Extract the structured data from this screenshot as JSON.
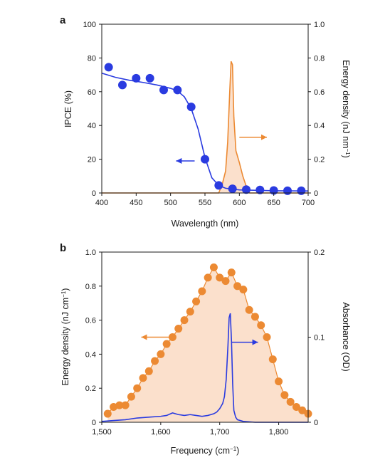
{
  "colors": {
    "blue": "#2a3be0",
    "orange": "#ec8a33",
    "fill": "#fbe0cc",
    "axis": "#1a1a1a"
  },
  "chart_data": [
    {
      "panel": "a",
      "type": "line",
      "xlabel": "Wavelength (nm)",
      "ylabel": "IPCE (%)",
      "y2label_main": "Energy density (nJ nm",
      "y2label_sup": "−1",
      "y2label_end": ")",
      "xlim": [
        400,
        700
      ],
      "ylim": [
        0,
        100
      ],
      "y2lim": [
        0,
        1.0
      ],
      "xticks": [
        400,
        450,
        500,
        550,
        600,
        650,
        700
      ],
      "xtick_labels": [
        "400",
        "450",
        "500",
        "550",
        "600",
        "650",
        "700"
      ],
      "yticks": [
        0,
        20,
        40,
        60,
        80,
        100
      ],
      "ytick_labels": [
        "0",
        "20",
        "40",
        "60",
        "80",
        "100"
      ],
      "y2ticks": [
        0,
        0.2,
        0.4,
        0.6,
        0.8,
        1.0
      ],
      "y2tick_labels": [
        "0",
        "0.2",
        "0.4",
        "0.6",
        "0.8",
        "1.0"
      ],
      "series": [
        {
          "type": "scatter",
          "axis": "left",
          "color": "#2a3be0",
          "x": [
            410,
            430,
            450,
            470,
            490,
            510,
            530,
            550,
            570,
            590,
            610,
            630,
            650,
            670,
            690
          ],
          "y": [
            74.5,
            64,
            68,
            68,
            61,
            61,
            51,
            20,
            4.5,
            2.5,
            2,
            1.8,
            1.5,
            1.3,
            1.3
          ]
        },
        {
          "type": "line",
          "axis": "left",
          "color": "#2a3be0",
          "x": [
            400,
            420,
            440,
            460,
            480,
            500,
            510,
            520,
            530,
            540,
            550,
            560,
            570,
            580,
            600,
            650,
            700
          ],
          "y": [
            71,
            68.5,
            66.8,
            65.5,
            64,
            62,
            60.5,
            57,
            50,
            38,
            21,
            9,
            4.5,
            2.8,
            1.8,
            1.3,
            1.2
          ]
        },
        {
          "type": "area",
          "axis": "right",
          "color": "#ec8a33",
          "x": [
            400,
            570,
            575,
            580,
            583,
            586,
            588,
            590,
            592,
            595,
            600,
            605,
            610,
            615,
            700
          ],
          "y": [
            0,
            0,
            0.05,
            0.13,
            0.3,
            0.6,
            0.78,
            0.76,
            0.45,
            0.25,
            0.18,
            0.1,
            0.04,
            0,
            0
          ]
        }
      ],
      "arrows": [
        {
          "direction": "left",
          "color": "#2a3be0",
          "x_from": 535,
          "x_to": 508,
          "y_ref": "left",
          "y": 19
        },
        {
          "direction": "right",
          "color": "#ec8a33",
          "x_from": 600,
          "x_to": 640,
          "y_ref": "right",
          "y": 0.33
        }
      ]
    },
    {
      "panel": "b",
      "type": "line",
      "xlabel_main": "Frequency (cm",
      "xlabel_sup": "−1",
      "xlabel_end": ")",
      "ylabel_main": "Energy density (nJ cm",
      "ylabel_sup": "−1",
      "ylabel_end": ")",
      "y2label": "Absorbance (OD)",
      "xlim": [
        1500,
        1850
      ],
      "ylim": [
        0,
        1.0
      ],
      "y2lim": [
        0,
        0.2
      ],
      "xticks": [
        1500,
        1600,
        1700,
        1800
      ],
      "xtick_labels": [
        "1,500",
        "1,600",
        "1,700",
        "1,800"
      ],
      "yticks": [
        0,
        0.2,
        0.4,
        0.6,
        0.8,
        1.0
      ],
      "ytick_labels": [
        "0",
        "0.2",
        "0.4",
        "0.6",
        "0.8",
        "1.0"
      ],
      "y2ticks": [
        0,
        0.1,
        0.2
      ],
      "y2tick_labels": [
        "0",
        "0.1",
        "0.2"
      ],
      "series": [
        {
          "type": "line+scatter+area",
          "axis": "left",
          "color": "#ec8a33",
          "x": [
            1510,
            1520,
            1530,
            1540,
            1550,
            1560,
            1570,
            1580,
            1590,
            1600,
            1610,
            1620,
            1630,
            1640,
            1650,
            1660,
            1670,
            1680,
            1690,
            1700,
            1710,
            1720,
            1730,
            1740,
            1750,
            1760,
            1770,
            1780,
            1790,
            1800,
            1810,
            1820,
            1830,
            1840,
            1850
          ],
          "y": [
            0.05,
            0.09,
            0.1,
            0.1,
            0.15,
            0.2,
            0.26,
            0.3,
            0.36,
            0.4,
            0.46,
            0.5,
            0.55,
            0.6,
            0.65,
            0.71,
            0.77,
            0.85,
            0.91,
            0.85,
            0.83,
            0.88,
            0.8,
            0.78,
            0.66,
            0.62,
            0.57,
            0.5,
            0.37,
            0.24,
            0.16,
            0.12,
            0.09,
            0.07,
            0.05
          ]
        },
        {
          "type": "line",
          "axis": "right",
          "color": "#2a3be0",
          "x": [
            1500,
            1520,
            1540,
            1560,
            1580,
            1600,
            1610,
            1620,
            1630,
            1640,
            1650,
            1660,
            1670,
            1680,
            1690,
            1695,
            1700,
            1705,
            1708,
            1711,
            1714,
            1716,
            1718,
            1720,
            1722,
            1724,
            1727,
            1730,
            1740,
            1760,
            1800,
            1850
          ],
          "y": [
            0.001,
            0.002,
            0.003,
            0.005,
            0.006,
            0.007,
            0.008,
            0.011,
            0.009,
            0.008,
            0.009,
            0.008,
            0.007,
            0.008,
            0.01,
            0.012,
            0.016,
            0.022,
            0.03,
            0.05,
            0.09,
            0.123,
            0.128,
            0.095,
            0.045,
            0.014,
            0.006,
            0.003,
            0.001,
            0,
            0,
            0
          ]
        }
      ],
      "arrows": [
        {
          "direction": "left",
          "color": "#ec8a33",
          "x_from": 1625,
          "x_to": 1567,
          "y_ref": "left",
          "y": 0.5
        },
        {
          "direction": "right",
          "color": "#2a3be0",
          "x_from": 1720,
          "x_to": 1765,
          "y_ref": "left",
          "y": 0.47
        }
      ]
    }
  ],
  "panel_labels": {
    "a": "a",
    "b": "b"
  }
}
